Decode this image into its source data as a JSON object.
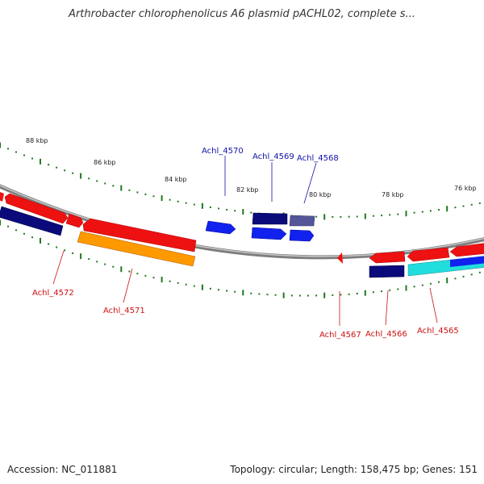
{
  "title": "Arthrobacter chlorophenolicus A6 plasmid pACHL02, complete s...",
  "footer": {
    "accession": "Accession: NC_011881",
    "stats": "Topology: circular; Length: 158,475 bp; Genes: 151"
  },
  "colors": {
    "backbone": "#888888",
    "tick": "#1f7a1f",
    "forward_gene": "#ee1111",
    "reverse_gene": "#0a0a7a",
    "blue_gene": "#1122ee",
    "orange_gene": "#ff9900",
    "cyan_gene": "#22dddd",
    "slate_gene": "#555599",
    "label_red": "#cc1111",
    "label_blue": "#1111aa"
  },
  "ruler": {
    "labels": [
      "88 kbp",
      "86 kbp",
      "84 kbp",
      "82 kbp",
      "80 kbp",
      "78 kbp",
      "76 kbp"
    ]
  },
  "gene_labels_top": [
    "Achl_4570",
    "Achl_4569",
    "Achl_4568"
  ],
  "gene_labels_bottom": [
    "Achl_4572",
    "Achl_4571",
    "Achl_4567",
    "Achl_4566",
    "Achl_4565"
  ]
}
